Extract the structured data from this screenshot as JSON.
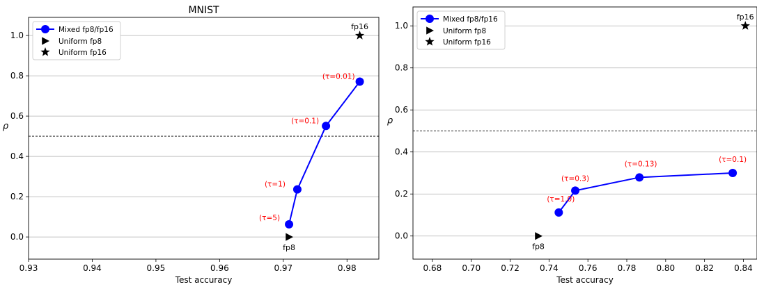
{
  "chart_data": [
    {
      "type": "scatter",
      "title": "MNIST",
      "xlabel": "Test accuracy",
      "ylabel": "ρ",
      "xlim": [
        0.93,
        0.985
      ],
      "ylim": [
        -0.11,
        1.09
      ],
      "xticks": [
        0.93,
        0.94,
        0.95,
        0.96,
        0.97,
        0.98
      ],
      "xtick_labels": [
        "0.93",
        "0.94",
        "0.95",
        "0.96",
        "0.97",
        "0.98"
      ],
      "yticks": [
        0.0,
        0.2,
        0.4,
        0.6,
        0.8,
        1.0
      ],
      "ytick_labels": [
        "0.0",
        "0.2",
        "0.4",
        "0.6",
        "0.8",
        "1.0"
      ],
      "grid": "horizontal",
      "legend_position": "top-left",
      "threshold_line": 0.5,
      "series": [
        {
          "name": "Mixed fp8/fp16",
          "marker": "circle",
          "color": "#0000ff",
          "x": [
            0.9709,
            0.9722,
            0.9767,
            0.982
          ],
          "y": [
            0.063,
            0.236,
            0.551,
            0.771
          ],
          "labels": [
            "(τ=5)",
            "(τ=1)",
            "(τ=0.1)",
            "(τ=0.01)"
          ]
        },
        {
          "name": "Uniform fp8",
          "marker": "triangle-right",
          "color": "#000000",
          "x": [
            0.9709
          ],
          "y": [
            0.0
          ],
          "labels": [
            "fp8"
          ]
        },
        {
          "name": "Uniform fp16",
          "marker": "star",
          "color": "#000000",
          "x": [
            0.982
          ],
          "y": [
            1.0
          ],
          "labels": [
            "fp16"
          ]
        }
      ]
    },
    {
      "type": "scatter",
      "title": "",
      "xlabel": "Test accuracy",
      "ylabel": "ρ",
      "xlim": [
        0.67,
        0.847
      ],
      "ylim": [
        -0.11,
        1.09
      ],
      "xticks": [
        0.68,
        0.7,
        0.72,
        0.74,
        0.76,
        0.78,
        0.8,
        0.82,
        0.84
      ],
      "xtick_labels": [
        "0.68",
        "0.70",
        "0.72",
        "0.74",
        "0.76",
        "0.78",
        "0.80",
        "0.82",
        "0.84"
      ],
      "yticks": [
        0.0,
        0.2,
        0.4,
        0.6,
        0.8,
        1.0
      ],
      "ytick_labels": [
        "0.0",
        "0.2",
        "0.4",
        "0.6",
        "0.8",
        "1.0"
      ],
      "grid": "horizontal",
      "legend_position": "top-left",
      "threshold_line": 0.5,
      "series": [
        {
          "name": "Mixed fp8/fp16",
          "marker": "circle",
          "color": "#0000ff",
          "x": [
            0.745,
            0.7535,
            0.7865,
            0.8345
          ],
          "y": [
            0.112,
            0.216,
            0.279,
            0.3
          ],
          "labels": [
            "(τ=1.0)",
            "(τ=0.3)",
            "(τ=0.13)",
            "(τ=0.1)"
          ]
        },
        {
          "name": "Uniform fp8",
          "marker": "triangle-right",
          "color": "#000000",
          "x": [
            0.7345
          ],
          "y": [
            0.0
          ],
          "labels": [
            "fp8"
          ]
        },
        {
          "name": "Uniform fp16",
          "marker": "star",
          "color": "#000000",
          "x": [
            0.841
          ],
          "y": [
            1.0
          ],
          "labels": [
            "fp16"
          ]
        }
      ]
    }
  ],
  "colors": {
    "mixed": "#0000ff",
    "annotation": "#ff0000",
    "uniform": "#000000",
    "grid": "#b0b0b0"
  }
}
